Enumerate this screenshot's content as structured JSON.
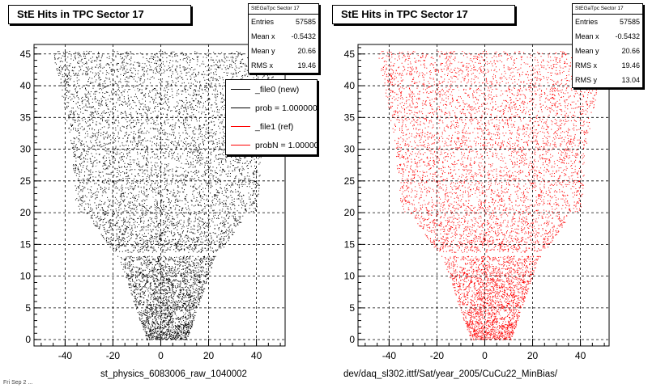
{
  "chart_data": [
    {
      "type": "scatter",
      "title": "StE Hits in TPC Sector 17",
      "xlabel": "st_physics_6083006_raw_1040002",
      "ylabel": "",
      "xlim": [
        -53,
        52
      ],
      "ylim": [
        -1,
        46.5
      ],
      "x_ticks": [
        -40,
        -20,
        0,
        20,
        40
      ],
      "y_ticks": [
        0,
        5,
        10,
        15,
        20,
        25,
        30,
        35,
        40,
        45
      ],
      "grid": true,
      "marker_color": "#000000",
      "stats": {
        "name": "StEGaTpc Sector 17",
        "rows": [
          {
            "label": "Entries",
            "value": "57585"
          },
          {
            "label": "Mean x",
            "value": "-0.5432"
          },
          {
            "label": "Mean y",
            "value": "20.66"
          },
          {
            "label": "RMS x",
            "value": "19.46"
          }
        ]
      },
      "legend": {
        "placement": "top-right",
        "entries": [
          {
            "label": "_file0 (new)",
            "color": "#000000"
          },
          {
            "label": "prob = 1.000000",
            "color": "#000000"
          },
          {
            "label": "_file1 (ref)",
            "color": "#ff0000"
          },
          {
            "label": "probN = 1.000000",
            "color": "#ff0000"
          }
        ]
      }
    },
    {
      "type": "scatter",
      "title": "StE Hits in TPC Sector 17",
      "xlabel": "dev/daq_sl302.ittf/Sat/year_2005/CuCu22_MinBias/",
      "ylabel": "",
      "xlim": [
        -53,
        52
      ],
      "ylim": [
        -1,
        46.5
      ],
      "x_ticks": [
        -40,
        -20,
        0,
        20,
        40
      ],
      "y_ticks": [
        0,
        5,
        10,
        15,
        20,
        25,
        30,
        35,
        40,
        45
      ],
      "grid": true,
      "marker_color": "#ff0000",
      "stats": {
        "name": "StEGaTpc Sector 17",
        "rows": [
          {
            "label": "Entries",
            "value": "57585"
          },
          {
            "label": "Mean x",
            "value": "-0.5432"
          },
          {
            "label": "Mean y",
            "value": "20.66"
          },
          {
            "label": "RMS x",
            "value": "19.46"
          },
          {
            "label": "RMS y",
            "value": "13.04"
          }
        ]
      }
    }
  ],
  "footer": "Fri Sep 2 ..."
}
